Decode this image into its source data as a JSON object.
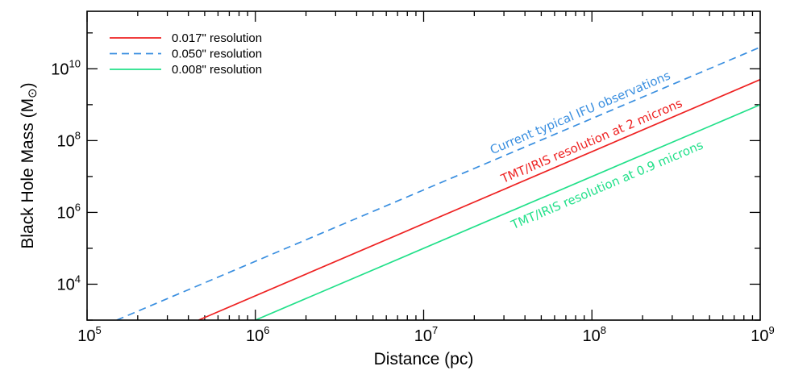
{
  "chart_data": {
    "type": "line",
    "title": "",
    "xlabel": "Distance (pc)",
    "ylabel": "Black Hole Mass (M",
    "ylabel_unit_symbol": "⊙",
    "ylabel_close": ")",
    "xscale": "log",
    "yscale": "log",
    "xlim": [
      100000,
      1000000000
    ],
    "ylim": [
      1000,
      400000000000
    ],
    "x_ticks": [
      {
        "base": "10",
        "exp": "5"
      },
      {
        "base": "10",
        "exp": "6"
      },
      {
        "base": "10",
        "exp": "7"
      },
      {
        "base": "10",
        "exp": "8"
      },
      {
        "base": "10",
        "exp": "9"
      }
    ],
    "y_ticks": [
      {
        "base": "10",
        "exp": "4"
      },
      {
        "base": "10",
        "exp": "6"
      },
      {
        "base": "10",
        "exp": "8"
      },
      {
        "base": "10",
        "exp": "10"
      }
    ],
    "grid": false,
    "legend_position": "top-left",
    "series": [
      {
        "name": "0.017\" resolution",
        "color": "#ee2222",
        "dash": "solid",
        "x": [
          460000,
          1000000000
        ],
        "y": [
          1000,
          5000000000
        ],
        "annotation": "TMT/IRIS resolution at 2 microns"
      },
      {
        "name": "0.050\" resolution",
        "color": "#3a8fe0",
        "dash": "dashed",
        "x": [
          150000,
          1000000000
        ],
        "y": [
          1000,
          40000000000
        ],
        "annotation": "Current typical IFU observations"
      },
      {
        "name": "0.008\" resolution",
        "color": "#22e08a",
        "dash": "solid",
        "x": [
          1000000,
          1000000000
        ],
        "y": [
          1000,
          1000000000
        ],
        "annotation": "TMT/IRIS resolution at 0.9 microns"
      }
    ]
  }
}
